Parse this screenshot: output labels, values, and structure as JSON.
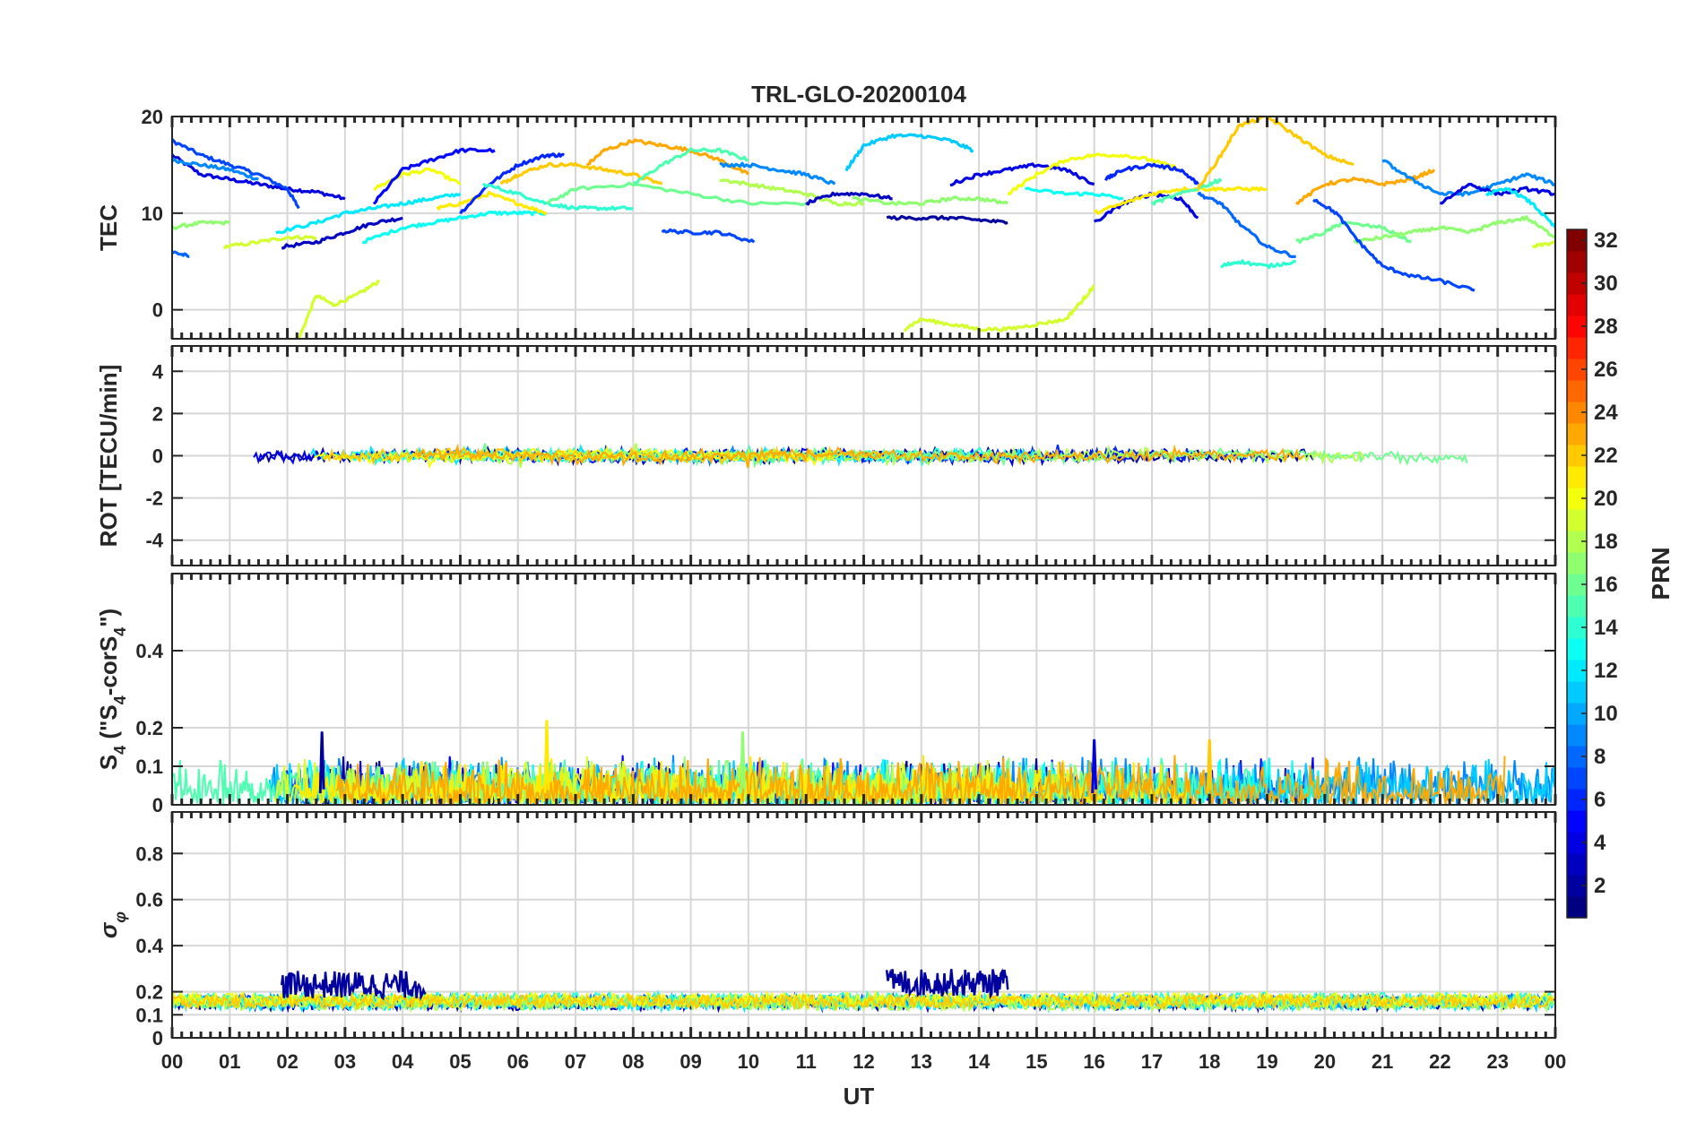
{
  "figure": {
    "title": "TRL-GLO-20200104",
    "xlabel": "UT",
    "x_ticks": [
      "00",
      "01",
      "02",
      "03",
      "04",
      "05",
      "06",
      "07",
      "08",
      "09",
      "10",
      "11",
      "12",
      "13",
      "14",
      "15",
      "16",
      "17",
      "18",
      "19",
      "20",
      "21",
      "22",
      "23",
      "00"
    ]
  },
  "colorbar": {
    "label": "PRN",
    "range": [
      1,
      32
    ],
    "ticks": [
      "2",
      "4",
      "6",
      "8",
      "10",
      "12",
      "14",
      "16",
      "18",
      "20",
      "22",
      "24",
      "26",
      "28",
      "30",
      "32"
    ],
    "tick_values": [
      2,
      4,
      6,
      8,
      10,
      12,
      14,
      16,
      18,
      20,
      22,
      24,
      26,
      28,
      30,
      32
    ]
  },
  "chart_data": [
    {
      "type": "line",
      "panel": "tec",
      "ylabel": "TEC",
      "x_range_hours": [
        0,
        24
      ],
      "ylim": [
        -3,
        20
      ],
      "y_ticks": [
        0,
        10,
        20
      ],
      "y_tick_labels": [
        "0",
        "10",
        "20"
      ],
      "series": [
        {
          "prn": 4,
          "x": [
            0.0,
            0.5,
            1.0,
            1.5,
            2.0,
            2.5,
            3.0
          ],
          "y": [
            16.0,
            14.0,
            13.5,
            13.0,
            12.5,
            12.2,
            11.5
          ]
        },
        {
          "prn": 7,
          "x": [
            0.0,
            0.5,
            1.0,
            1.5,
            2.0,
            2.2
          ],
          "y": [
            17.5,
            16.0,
            15.0,
            14.0,
            12.5,
            10.5
          ]
        },
        {
          "prn": 9,
          "x": [
            0.0,
            0.5,
            1.0,
            1.5
          ],
          "y": [
            15.5,
            15.0,
            14.5,
            13.5
          ]
        },
        {
          "prn": 8,
          "x": [
            0.0,
            0.3
          ],
          "y": [
            6.0,
            5.5
          ]
        },
        {
          "prn": 17,
          "x": [
            0.0,
            0.5,
            1.0
          ],
          "y": [
            8.5,
            9.0,
            9.0
          ]
        },
        {
          "prn": 19,
          "x": [
            0.9,
            1.5,
            2.0,
            2.5
          ],
          "y": [
            6.5,
            7.0,
            7.5,
            7.5
          ]
        },
        {
          "prn": 19,
          "x": [
            2.2,
            2.5,
            2.8,
            3.2,
            3.6
          ],
          "y": [
            -3.0,
            1.5,
            0.5,
            1.5,
            3.0
          ]
        },
        {
          "prn": 3,
          "x": [
            1.9,
            2.5,
            3.0,
            3.5,
            4.0
          ],
          "y": [
            6.5,
            7.0,
            8.0,
            9.0,
            9.5
          ]
        },
        {
          "prn": 12,
          "x": [
            1.8,
            2.5,
            3.0,
            3.5,
            4.0,
            4.5,
            5.0
          ],
          "y": [
            8.0,
            9.0,
            10.0,
            10.5,
            11.0,
            11.5,
            12.0
          ]
        },
        {
          "prn": 13,
          "x": [
            3.3,
            4.0,
            4.5,
            5.0,
            5.5,
            6.0,
            6.5
          ],
          "y": [
            7.0,
            8.5,
            9.0,
            9.5,
            10.0,
            10.0,
            10.0
          ]
        },
        {
          "prn": 20,
          "x": [
            3.5,
            4.0,
            4.5,
            5.0
          ],
          "y": [
            12.5,
            14.0,
            14.5,
            13.0
          ]
        },
        {
          "prn": 5,
          "x": [
            3.5,
            4.0,
            4.5,
            5.0,
            5.6
          ],
          "y": [
            11.0,
            14.5,
            15.5,
            16.5,
            16.5
          ]
        },
        {
          "prn": 21,
          "x": [
            4.6,
            5.0,
            5.5,
            6.0,
            6.5
          ],
          "y": [
            10.5,
            11.0,
            12.0,
            11.0,
            10.0
          ]
        },
        {
          "prn": 6,
          "x": [
            5.0,
            5.5,
            6.0,
            6.5,
            6.8
          ],
          "y": [
            10.0,
            13.0,
            15.0,
            16.0,
            16.0
          ]
        },
        {
          "prn": 22,
          "x": [
            5.7,
            6.0,
            6.5,
            7.0,
            7.5,
            8.0,
            8.5
          ],
          "y": [
            13.0,
            14.0,
            15.0,
            15.0,
            14.5,
            14.0,
            13.0
          ]
        },
        {
          "prn": 14,
          "x": [
            5.4,
            6.0,
            6.5,
            7.0,
            7.5,
            8.0
          ],
          "y": [
            13.0,
            12.0,
            11.0,
            10.5,
            10.5,
            10.5
          ]
        },
        {
          "prn": 16,
          "x": [
            6.5,
            7.0,
            8.0,
            9.0,
            10.0,
            11.0
          ],
          "y": [
            11.0,
            12.5,
            13.0,
            12.0,
            11.0,
            11.0
          ]
        },
        {
          "prn": 23,
          "x": [
            7.2,
            7.5,
            8.0,
            8.5,
            9.0,
            9.5,
            10.0
          ],
          "y": [
            15.0,
            16.5,
            17.5,
            17.0,
            16.5,
            15.5,
            14.0
          ]
        },
        {
          "prn": 15,
          "x": [
            8.0,
            8.5,
            9.0,
            9.5,
            10.0
          ],
          "y": [
            13.0,
            15.0,
            16.5,
            16.5,
            15.5
          ]
        },
        {
          "prn": 7,
          "x": [
            8.5,
            9.0,
            9.5,
            10.1
          ],
          "y": [
            8.2,
            8.0,
            8.0,
            7.0
          ]
        },
        {
          "prn": 18,
          "x": [
            9.5,
            10.0,
            10.5,
            11.0,
            11.5,
            12.0
          ],
          "y": [
            13.5,
            13.0,
            12.5,
            12.0,
            11.0,
            11.0
          ]
        },
        {
          "prn": 9,
          "x": [
            9.5,
            10.0,
            10.5,
            11.0,
            11.5
          ],
          "y": [
            15.0,
            15.0,
            14.5,
            14.0,
            13.0
          ]
        },
        {
          "prn": 3,
          "x": [
            11.0,
            11.5,
            12.0,
            12.5
          ],
          "y": [
            11.0,
            12.0,
            12.0,
            11.5
          ]
        },
        {
          "prn": 11,
          "x": [
            11.7,
            12.0,
            12.5,
            13.0,
            13.5,
            13.9
          ],
          "y": [
            14.5,
            17.0,
            18.0,
            18.0,
            17.5,
            16.5
          ]
        },
        {
          "prn": 2,
          "x": [
            12.4,
            13.0,
            13.5,
            14.0,
            14.5
          ],
          "y": [
            9.5,
            9.5,
            9.5,
            9.3,
            9.0
          ]
        },
        {
          "prn": 19,
          "x": [
            12.7,
            13.0,
            13.5,
            14.0,
            14.5,
            15.0,
            15.5,
            15.8,
            16.0
          ],
          "y": [
            -2.0,
            -1.0,
            -1.5,
            -2.0,
            -2.0,
            -1.5,
            -1.0,
            1.0,
            2.5
          ]
        },
        {
          "prn": 17,
          "x": [
            11.8,
            12.5,
            13.0,
            13.5,
            14.0,
            14.5
          ],
          "y": [
            11.5,
            11.0,
            11.0,
            11.5,
            11.5,
            11.0
          ]
        },
        {
          "prn": 4,
          "x": [
            13.5,
            14.0,
            14.5,
            15.0,
            15.5,
            16.0
          ],
          "y": [
            13.0,
            14.0,
            14.5,
            15.0,
            14.5,
            13.0
          ]
        },
        {
          "prn": 20,
          "x": [
            14.5,
            15.0,
            15.5,
            16.0,
            16.5,
            17.0,
            17.5
          ],
          "y": [
            12.0,
            14.0,
            15.5,
            16.0,
            16.0,
            15.5,
            14.5
          ]
        },
        {
          "prn": 13,
          "x": [
            14.8,
            15.5,
            16.0,
            16.5
          ],
          "y": [
            12.5,
            12.0,
            12.0,
            11.5
          ]
        },
        {
          "prn": 4,
          "x": [
            16.0,
            16.5,
            17.0,
            17.5,
            17.8
          ],
          "y": [
            9.0,
            11.0,
            12.0,
            11.5,
            9.5
          ]
        },
        {
          "prn": 6,
          "x": [
            16.2,
            16.5,
            17.0,
            17.5,
            17.8
          ],
          "y": [
            13.5,
            14.5,
            15.0,
            14.5,
            13.0
          ]
        },
        {
          "prn": 21,
          "x": [
            16.0,
            16.5,
            17.0,
            17.5,
            18.0,
            18.5,
            19.0
          ],
          "y": [
            10.0,
            11.0,
            12.0,
            12.5,
            12.5,
            12.5,
            12.5
          ]
        },
        {
          "prn": 15,
          "x": [
            17.0,
            17.5,
            18.0,
            18.2
          ],
          "y": [
            11.0,
            12.0,
            13.0,
            13.5
          ]
        },
        {
          "prn": 8,
          "x": [
            17.8,
            18.2,
            18.5,
            19.0,
            19.5
          ],
          "y": [
            12.0,
            11.0,
            9.0,
            6.5,
            5.5
          ]
        },
        {
          "prn": 22,
          "x": [
            17.8,
            18.2,
            18.5,
            19.0,
            19.5,
            20.0,
            20.5
          ],
          "y": [
            12.5,
            16.0,
            19.0,
            20.0,
            18.0,
            16.0,
            15.0
          ]
        },
        {
          "prn": 14,
          "x": [
            18.2,
            18.5,
            19.0,
            19.5
          ],
          "y": [
            4.5,
            5.0,
            4.5,
            5.0
          ]
        },
        {
          "prn": 23,
          "x": [
            19.5,
            20.0,
            20.5,
            21.0,
            21.5,
            21.9
          ],
          "y": [
            11.0,
            13.0,
            13.5,
            13.0,
            13.5,
            14.5
          ]
        },
        {
          "prn": 16,
          "x": [
            19.5,
            20.0,
            20.3,
            21.0,
            21.5
          ],
          "y": [
            7.0,
            8.0,
            9.0,
            8.5,
            7.0
          ]
        },
        {
          "prn": 17,
          "x": [
            20.5,
            21.0,
            21.5,
            22.0,
            22.5,
            23.0,
            23.5,
            24.0
          ],
          "y": [
            7.0,
            7.5,
            8.0,
            8.5,
            8.0,
            9.0,
            9.5,
            7.5
          ]
        },
        {
          "prn": 7,
          "x": [
            19.8,
            20.2,
            20.6,
            21.0,
            21.5,
            22.0,
            22.6
          ],
          "y": [
            11.5,
            10.0,
            7.0,
            4.5,
            3.5,
            3.0,
            2.0
          ]
        },
        {
          "prn": 9,
          "x": [
            21.0,
            21.5,
            22.0,
            22.5,
            23.0,
            23.5,
            24.0
          ],
          "y": [
            15.5,
            13.5,
            12.0,
            12.0,
            13.0,
            14.0,
            13.0
          ]
        },
        {
          "prn": 4,
          "x": [
            22.0,
            22.5,
            23.0,
            23.5,
            24.0
          ],
          "y": [
            11.0,
            13.0,
            12.0,
            12.5,
            12.0
          ]
        },
        {
          "prn": 12,
          "x": [
            22.8,
            23.2,
            23.6,
            24.0
          ],
          "y": [
            12.0,
            12.5,
            11.0,
            8.5
          ]
        },
        {
          "prn": 19,
          "x": [
            23.6,
            24.0
          ],
          "y": [
            6.5,
            7.0
          ]
        }
      ]
    },
    {
      "type": "line",
      "panel": "rot",
      "ylabel": "ROT [TECU/min]",
      "x_range_hours": [
        0,
        24
      ],
      "ylim": [
        -5.2,
        5.2
      ],
      "y_ticks": [
        -4,
        -2,
        0,
        2,
        4
      ],
      "y_tick_labels": [
        "-4",
        "-2",
        "0",
        "2",
        "4"
      ],
      "baseline": 0,
      "typical_amplitude": 0.25,
      "max_excursion": 0.6
    },
    {
      "type": "line",
      "panel": "s4",
      "ylabel": "S4 (\"S4-corS4\")",
      "ylabel_parts": {
        "s": "S",
        "sub": "4",
        "open": " (\"S",
        "sub2": "4",
        "mid": "-corS",
        "sub3": "4",
        "close": "\")"
      },
      "x_range_hours": [
        0,
        24
      ],
      "ylim": [
        0,
        0.6
      ],
      "y_ticks": [
        0,
        0.1,
        0.2,
        0.4
      ],
      "y_tick_labels": [
        "0",
        "0.1",
        "0.2",
        "0.4"
      ],
      "typical_range": [
        0.0,
        0.12
      ],
      "peaks": [
        {
          "x": 2.6,
          "y": 0.19,
          "prn": 2
        },
        {
          "x": 6.5,
          "y": 0.22,
          "prn": 21
        },
        {
          "x": 9.9,
          "y": 0.19,
          "prn": 17
        },
        {
          "x": 16.0,
          "y": 0.17,
          "prn": 4
        },
        {
          "x": 18.0,
          "y": 0.17,
          "prn": 22
        }
      ]
    },
    {
      "type": "line",
      "panel": "sigma_phi",
      "ylabel": "σ φ",
      "ylabel_parts": {
        "main": "σ",
        "sub": "φ"
      },
      "x_range_hours": [
        0,
        24
      ],
      "ylim": [
        0,
        0.98
      ],
      "y_ticks": [
        0,
        0.1,
        0.2,
        0.4,
        0.6,
        0.8
      ],
      "y_tick_labels": [
        "0",
        "0.1",
        "0.2",
        "0.4",
        "0.6",
        "0.8"
      ],
      "baseline_range": [
        0.12,
        0.2
      ],
      "elevated_segments": [
        {
          "prn": 2,
          "x_start": 1.9,
          "x_end": 4.4,
          "y_level": 0.23
        },
        {
          "prn": 2,
          "x_start": 12.4,
          "x_end": 14.5,
          "y_level": 0.24
        }
      ]
    }
  ]
}
